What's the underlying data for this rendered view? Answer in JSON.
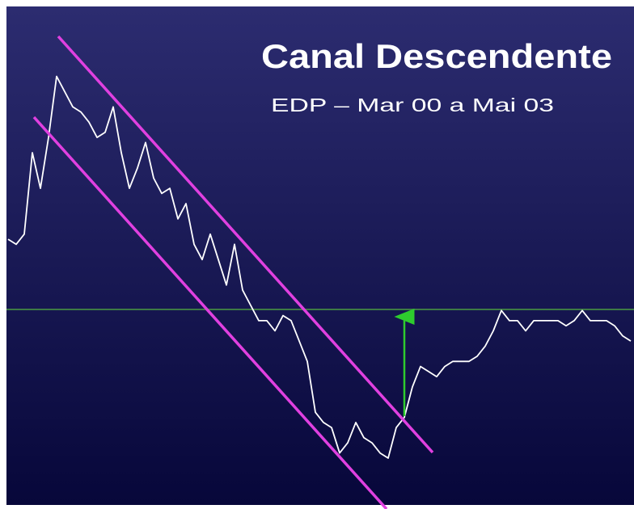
{
  "chart_data": {
    "type": "line",
    "title": "Canal Descendente",
    "subtitle": "EDP – Mar 00 a  Mai 03",
    "series": [
      {
        "color": "#ffffff",
        "values": [
          53,
          52,
          54,
          70,
          63,
          73,
          85,
          82,
          79,
          78,
          76,
          73,
          74,
          79,
          70,
          63,
          67,
          72,
          65,
          62,
          63,
          57,
          60,
          52,
          49,
          54,
          49,
          44,
          52,
          43,
          40,
          37,
          37,
          35,
          38,
          37,
          33,
          29,
          19,
          17,
          16,
          11,
          13,
          17,
          14,
          13,
          11,
          10,
          16,
          18,
          24,
          28,
          27,
          26,
          28,
          29,
          29,
          29,
          30,
          32,
          35,
          39,
          37,
          37,
          35,
          37,
          37,
          37,
          37,
          36,
          37,
          39,
          37,
          37,
          37,
          36,
          34,
          33
        ]
      }
    ],
    "ylim": [
      0,
      100
    ]
  }
}
